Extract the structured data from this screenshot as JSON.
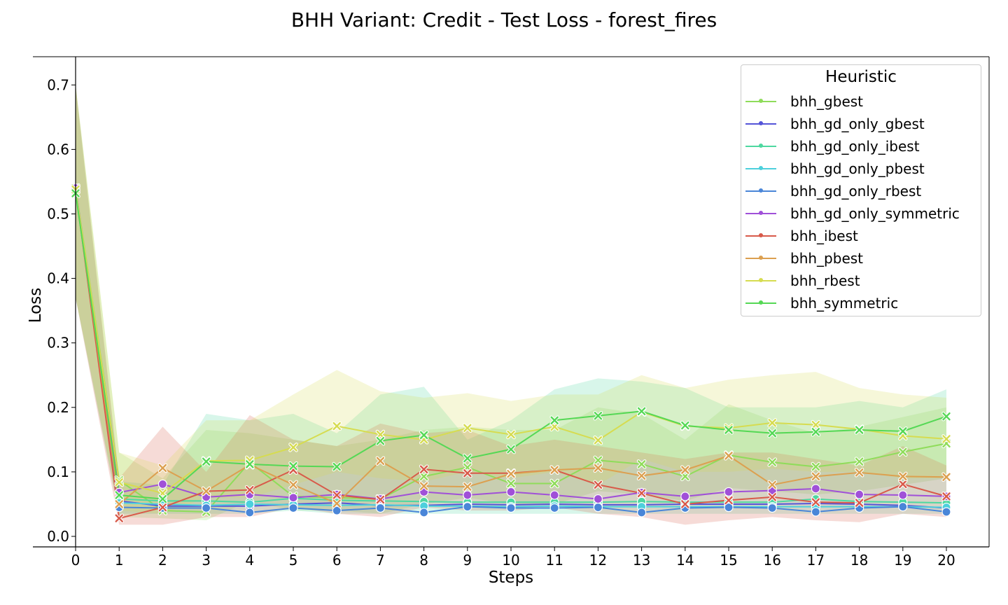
{
  "chart_data": {
    "type": "line",
    "title": "BHH Variant: Credit - Test Loss - forest_fires",
    "xlabel": "Steps",
    "ylabel": "Loss",
    "xlim": [
      0,
      21
    ],
    "ylim": [
      -0.017,
      0.74
    ],
    "xticks": [
      0,
      1,
      2,
      3,
      4,
      5,
      6,
      7,
      8,
      9,
      10,
      11,
      12,
      13,
      14,
      15,
      16,
      17,
      18,
      19,
      20
    ],
    "yticks": [
      0.0,
      0.1,
      0.2,
      0.3,
      0.4,
      0.5,
      0.6,
      0.7
    ],
    "ytick_labels": [
      "0.0",
      "0.1",
      "0.2",
      "0.3",
      "0.4",
      "0.5",
      "0.6",
      "0.7"
    ],
    "grid": false,
    "legend": {
      "title": "Heuristic",
      "placement": "top-right"
    },
    "x": [
      0,
      1,
      2,
      3,
      4,
      5,
      6,
      7,
      8,
      9,
      10,
      11,
      12,
      13,
      14,
      15,
      16,
      17,
      18,
      19,
      20
    ],
    "series": [
      {
        "name": "bhh_gbest",
        "color": "#8fdc5a",
        "marker": "x",
        "values": [
          0.54,
          0.087,
          0.04,
          0.038,
          0.115,
          0.062,
          0.06,
          0.058,
          0.093,
          0.107,
          0.082,
          0.082,
          0.118,
          0.112,
          0.093,
          0.126,
          0.115,
          0.108,
          0.116,
          0.131,
          0.144
        ]
      },
      {
        "name": "bhh_gd_only_gbest",
        "color": "#5555d8",
        "marker": "o",
        "values": [
          0.54,
          0.055,
          0.047,
          0.047,
          0.047,
          0.05,
          0.052,
          0.048,
          0.048,
          0.05,
          0.049,
          0.05,
          0.049,
          0.049,
          0.05,
          0.05,
          0.05,
          0.051,
          0.05,
          0.048,
          0.044
        ]
      },
      {
        "name": "bhh_gd_only_ibest",
        "color": "#4ed8a0",
        "marker": "o",
        "values": [
          0.535,
          0.058,
          0.055,
          0.055,
          0.053,
          0.059,
          0.056,
          0.055,
          0.054,
          0.053,
          0.053,
          0.053,
          0.053,
          0.054,
          0.053,
          0.053,
          0.053,
          0.058,
          0.054,
          0.053,
          0.052
        ]
      },
      {
        "name": "bhh_gd_only_pbest",
        "color": "#4dd0dc",
        "marker": "o",
        "values": [
          0.538,
          0.052,
          0.05,
          0.048,
          0.05,
          0.049,
          0.048,
          0.049,
          0.047,
          0.047,
          0.046,
          0.047,
          0.046,
          0.046,
          0.046,
          0.046,
          0.046,
          0.046,
          0.046,
          0.046,
          0.045
        ]
      },
      {
        "name": "bhh_gd_only_rbest",
        "color": "#4a86d8",
        "marker": "o",
        "values": [
          0.537,
          0.045,
          0.044,
          0.044,
          0.037,
          0.044,
          0.04,
          0.044,
          0.037,
          0.046,
          0.044,
          0.044,
          0.045,
          0.037,
          0.044,
          0.045,
          0.044,
          0.038,
          0.044,
          0.046,
          0.038
        ]
      },
      {
        "name": "bhh_gd_only_symmetric",
        "color": "#a050d8",
        "marker": "o",
        "values": [
          0.54,
          0.068,
          0.081,
          0.061,
          0.065,
          0.06,
          0.065,
          0.058,
          0.069,
          0.064,
          0.069,
          0.064,
          0.058,
          0.068,
          0.062,
          0.069,
          0.071,
          0.074,
          0.065,
          0.064,
          0.062
        ]
      },
      {
        "name": "bhh_ibest",
        "color": "#d85a4a",
        "marker": "x",
        "values": [
          0.538,
          0.028,
          0.045,
          0.07,
          0.072,
          0.103,
          0.064,
          0.057,
          0.104,
          0.098,
          0.098,
          0.103,
          0.08,
          0.067,
          0.05,
          0.056,
          0.061,
          0.053,
          0.052,
          0.081,
          0.062
        ]
      },
      {
        "name": "bhh_pbest",
        "color": "#dca050",
        "marker": "x",
        "values": [
          0.538,
          0.05,
          0.106,
          0.07,
          0.111,
          0.08,
          0.051,
          0.117,
          0.078,
          0.077,
          0.097,
          0.103,
          0.106,
          0.094,
          0.103,
          0.125,
          0.08,
          0.093,
          0.099,
          0.093,
          0.092
        ]
      },
      {
        "name": "bhh_rbest",
        "color": "#d6dc50",
        "marker": "x",
        "values": [
          0.538,
          0.084,
          0.067,
          0.117,
          0.118,
          0.138,
          0.171,
          0.158,
          0.15,
          0.168,
          0.158,
          0.17,
          0.149,
          0.193,
          0.171,
          0.168,
          0.176,
          0.173,
          0.166,
          0.156,
          0.151
        ]
      },
      {
        "name": "bhh_symmetric",
        "color": "#55d855",
        "marker": "x",
        "values": [
          0.532,
          0.064,
          0.058,
          0.116,
          0.112,
          0.109,
          0.108,
          0.148,
          0.157,
          0.121,
          0.135,
          0.18,
          0.187,
          0.194,
          0.172,
          0.165,
          0.16,
          0.162,
          0.165,
          0.163,
          0.186
        ]
      }
    ],
    "bands": [
      {
        "series": "bhh_gbest",
        "color": "#8fdc5a",
        "lower": [
          0.37,
          0.03,
          0.028,
          0.025,
          0.055,
          0.04,
          0.04,
          0.035,
          0.05,
          0.06,
          0.05,
          0.05,
          0.07,
          0.065,
          0.055,
          0.075,
          0.07,
          0.065,
          0.07,
          0.08,
          0.09
        ],
        "upper": [
          0.7,
          0.13,
          0.09,
          0.165,
          0.16,
          0.15,
          0.14,
          0.15,
          0.165,
          0.17,
          0.165,
          0.165,
          0.2,
          0.19,
          0.15,
          0.205,
          0.18,
          0.16,
          0.17,
          0.185,
          0.2
        ]
      },
      {
        "name_ref": "bhh_gd_only_ibest",
        "series": "bhh_gd_only_ibest",
        "color": "#4ed8a0",
        "lower": [
          0.37,
          0.035,
          0.035,
          0.035,
          0.035,
          0.04,
          0.035,
          0.035,
          0.035,
          0.035,
          0.035,
          0.035,
          0.035,
          0.035,
          0.035,
          0.035,
          0.035,
          0.035,
          0.035,
          0.035,
          0.035
        ],
        "upper": [
          0.7,
          0.085,
          0.08,
          0.19,
          0.18,
          0.19,
          0.16,
          0.22,
          0.232,
          0.15,
          0.18,
          0.228,
          0.245,
          0.24,
          0.23,
          0.2,
          0.2,
          0.2,
          0.21,
          0.2,
          0.228
        ]
      },
      {
        "series": "bhh_ibest",
        "color": "#d85a4a",
        "lower": [
          0.37,
          0.018,
          0.018,
          0.03,
          0.03,
          0.045,
          0.035,
          0.03,
          0.045,
          0.04,
          0.04,
          0.045,
          0.035,
          0.03,
          0.018,
          0.025,
          0.03,
          0.025,
          0.022,
          0.035,
          0.03
        ],
        "upper": [
          0.7,
          0.09,
          0.17,
          0.1,
          0.188,
          0.15,
          0.14,
          0.175,
          0.16,
          0.165,
          0.14,
          0.15,
          0.14,
          0.13,
          0.12,
          0.13,
          0.13,
          0.12,
          0.11,
          0.14,
          0.11
        ]
      },
      {
        "series": "bhh_rbest",
        "color": "#d6dc50",
        "lower": [
          0.37,
          0.04,
          0.035,
          0.06,
          0.06,
          0.08,
          0.1,
          0.09,
          0.085,
          0.1,
          0.09,
          0.1,
          0.08,
          0.12,
          0.1,
          0.1,
          0.105,
          0.1,
          0.1,
          0.09,
          0.09
        ],
        "upper": [
          0.7,
          0.13,
          0.11,
          0.18,
          0.18,
          0.22,
          0.258,
          0.225,
          0.215,
          0.222,
          0.21,
          0.22,
          0.22,
          0.25,
          0.23,
          0.243,
          0.25,
          0.255,
          0.23,
          0.22,
          0.215
        ]
      }
    ]
  }
}
